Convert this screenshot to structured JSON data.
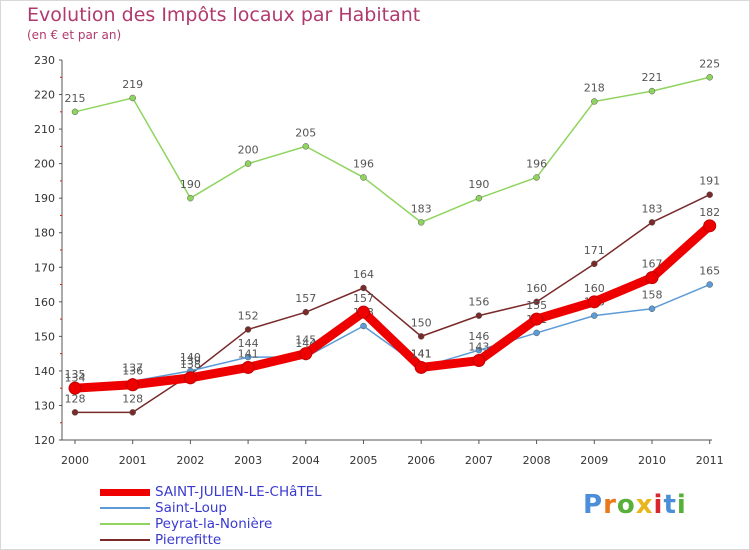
{
  "header": {
    "title": "Evolution des Impôts locaux par Habitant",
    "subtitle": "(en € et par an)"
  },
  "chart_data": {
    "type": "line",
    "title": "Evolution des Impôts locaux par Habitant",
    "subtitle": "(en € et par an)",
    "xlabel": "",
    "ylabel": "",
    "categories": [
      "2000",
      "2001",
      "2002",
      "2003",
      "2004",
      "2005",
      "2006",
      "2007",
      "2008",
      "2009",
      "2010",
      "2011"
    ],
    "ylim": [
      120,
      230
    ],
    "yticks": [
      120,
      130,
      140,
      150,
      160,
      170,
      180,
      190,
      200,
      210,
      220,
      230
    ],
    "grid": false,
    "series": [
      {
        "name": "Peyrat-la-Nonière",
        "color": "#8fd45e",
        "values": [
          215,
          219,
          190,
          200,
          205,
          196,
          183,
          190,
          196,
          218,
          221,
          225
        ]
      },
      {
        "name": "Pierrefitte",
        "color": "#7a2a2a",
        "values": [
          128,
          128,
          139,
          152,
          157,
          164,
          150,
          156,
          160,
          171,
          183,
          191
        ]
      },
      {
        "name": "Saint-Loup",
        "color": "#5c9bd6",
        "values": [
          134,
          137,
          140,
          144,
          144,
          153,
          141,
          146,
          151,
          156,
          158,
          165
        ]
      },
      {
        "name": "SAINT-JULIEN-LE-CHâTEL",
        "color": "#ee0000",
        "values": [
          135,
          136,
          138,
          141,
          145,
          157,
          141,
          143,
          155,
          160,
          167,
          182
        ]
      }
    ]
  },
  "legend": {
    "items": [
      {
        "label": "SAINT-JULIEN-LE-CHâTEL",
        "color": "#ee0000"
      },
      {
        "label": "Saint-Loup",
        "color": "#5c9bd6"
      },
      {
        "label": "Peyrat-la-Nonière",
        "color": "#8fd45e"
      },
      {
        "label": "Pierrefitte",
        "color": "#7a2a2a"
      }
    ]
  },
  "logo": {
    "text": "Proxiti"
  }
}
